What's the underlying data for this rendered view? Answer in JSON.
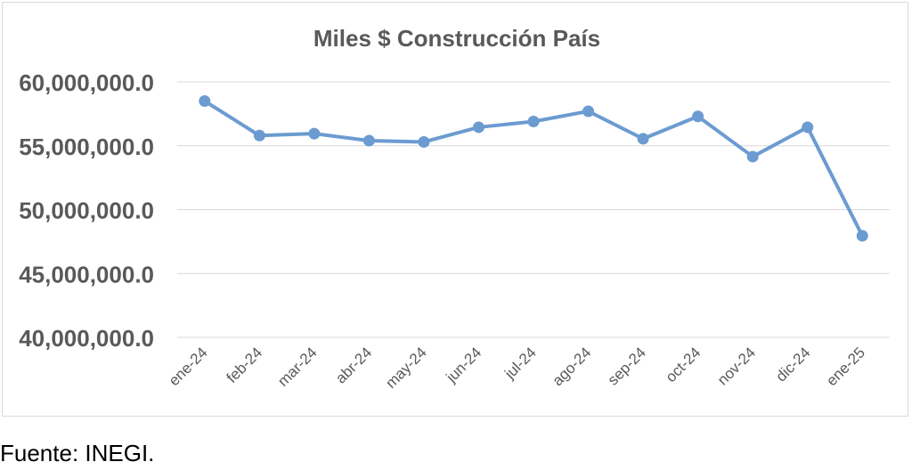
{
  "chart_data": {
    "type": "line",
    "title": "Miles $ Construcción País",
    "xlabel": "",
    "ylabel": "",
    "categories": [
      "ene-24",
      "feb-24",
      "mar-24",
      "abr-24",
      "may-24",
      "jun-24",
      "jul-24",
      "ago-24",
      "sep-24",
      "oct-24",
      "nov-24",
      "dic-24",
      "ene-25"
    ],
    "series": [
      {
        "values": [
          58500000,
          55800000,
          55950000,
          55400000,
          55300000,
          56450000,
          56900000,
          57700000,
          55550000,
          57300000,
          54150000,
          56450000,
          47950000
        ]
      }
    ],
    "y_ticks": [
      "40,000,000.0",
      "45,000,000.0",
      "50,000,000.0",
      "55,000,000.0",
      "60,000,000.0"
    ],
    "ylim": [
      40000000,
      60000000
    ],
    "grid": true,
    "legend": "none",
    "line_color": "#6b9bd1",
    "grid_color": "#d9d9d9"
  },
  "footer": {
    "source": "Fuente: INEGI."
  }
}
